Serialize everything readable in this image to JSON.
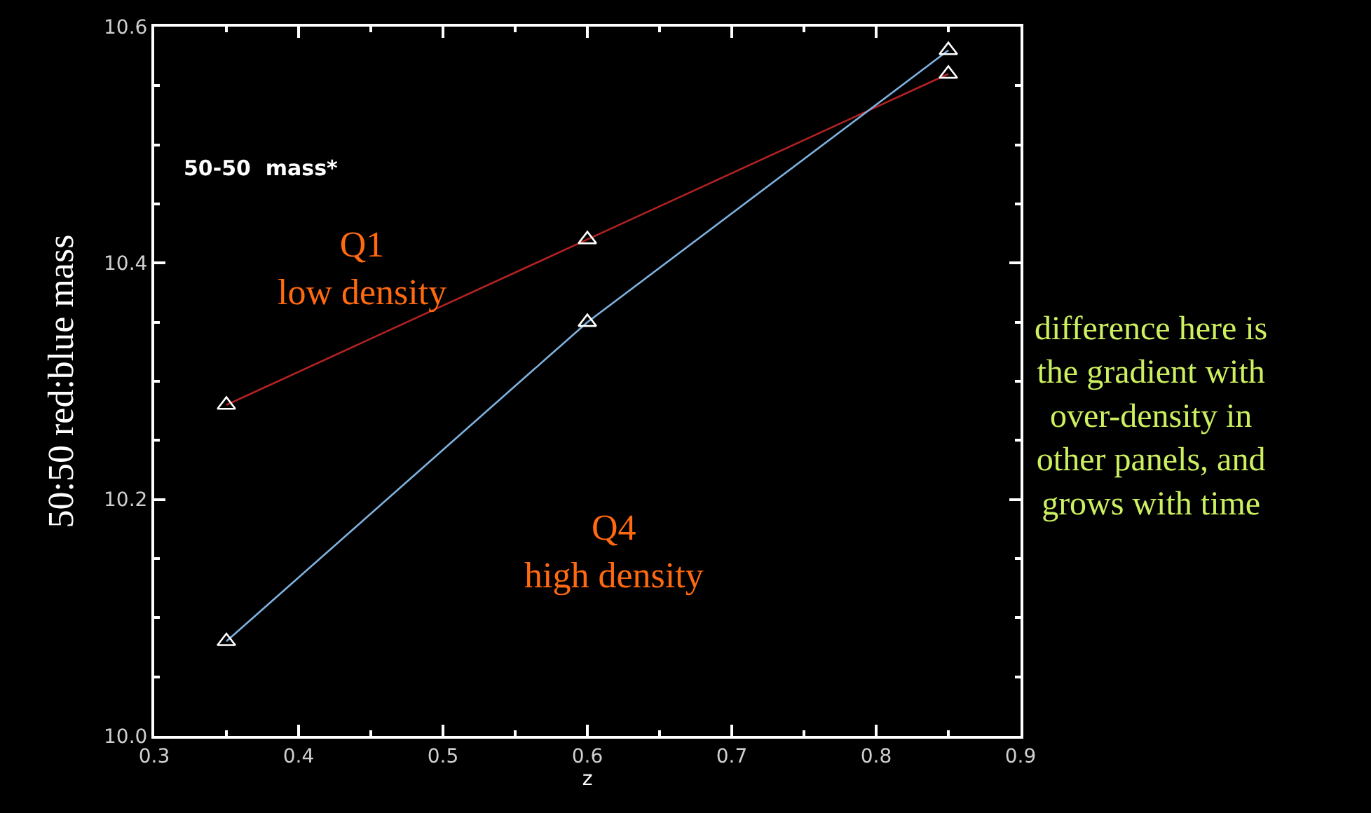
{
  "chart_data": {
    "type": "line",
    "xlabel": "z",
    "ylabel": "50:50 red:blue mass",
    "x": [
      0.35,
      0.6,
      0.85
    ],
    "series": [
      {
        "color": "#b22222",
        "values": [
          10.28,
          10.42,
          10.56
        ]
      },
      {
        "color": "#7fb2e0",
        "values": [
          10.08,
          10.35,
          10.58
        ]
      }
    ],
    "marker": "triangle",
    "line_style": "solid",
    "grid": false,
    "xlim": [
      0.3,
      0.9
    ],
    "xticks": [
      0.3,
      0.4,
      0.5,
      0.6,
      0.7,
      0.8,
      0.9
    ],
    "ylim": [
      10.0,
      10.6
    ],
    "yticks": [
      {
        "value": 10.0,
        "label": "10.0"
      },
      10.2,
      10.4,
      10.6
    ],
    "annotations": [
      "50-50  mass*",
      "Q1\nlow density",
      "Q4\nhigh density",
      "difference here is\nthe gradient with\nover-density in\nother panels, and\ngrows with time"
    ]
  }
}
